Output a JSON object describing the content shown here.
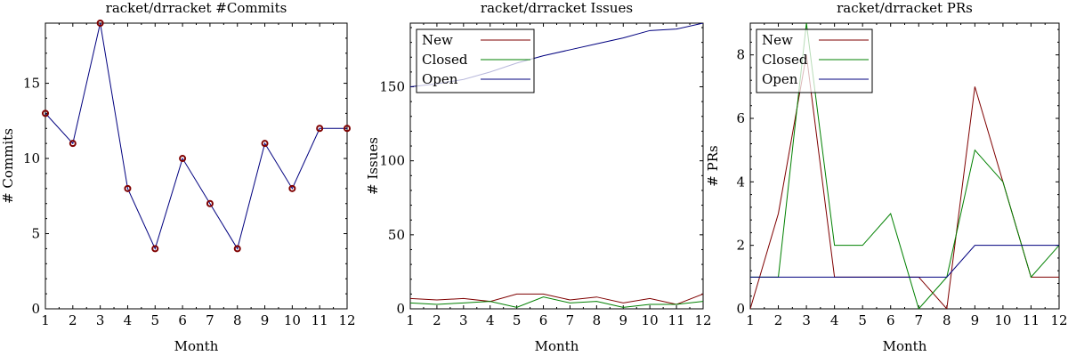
{
  "chart_data": [
    {
      "type": "line",
      "title": "racket/drracket #Commits",
      "xlabel": "Month",
      "ylabel": "# Commits",
      "categories": [
        1,
        2,
        3,
        4,
        5,
        6,
        7,
        8,
        9,
        10,
        11,
        12
      ],
      "xlim": [
        1,
        12
      ],
      "ylim": [
        0,
        19
      ],
      "yticks": [
        0,
        5,
        10,
        15
      ],
      "grid": false,
      "markers": true,
      "series": [
        {
          "values": [
            13,
            11,
            19,
            8,
            4,
            10,
            7,
            4,
            11,
            8,
            12,
            12
          ],
          "color": "#00007f",
          "marker_color": "#7f0000"
        }
      ]
    },
    {
      "type": "line",
      "title": "racket/drracket Issues",
      "xlabel": "Month",
      "ylabel": "# Issues",
      "categories": [
        1,
        2,
        3,
        4,
        5,
        6,
        7,
        8,
        9,
        10,
        11,
        12
      ],
      "xlim": [
        1,
        12
      ],
      "ylim": [
        0,
        193
      ],
      "yticks": [
        0,
        50,
        100,
        150
      ],
      "grid": false,
      "legend": "top-left",
      "series": [
        {
          "name": "New",
          "values": [
            7,
            6,
            7,
            5,
            10,
            10,
            6,
            8,
            4,
            7,
            3,
            10
          ],
          "color": "#7f0000"
        },
        {
          "name": "Closed",
          "values": [
            4,
            3,
            4,
            5,
            1,
            8,
            4,
            5,
            1,
            3,
            3,
            5
          ],
          "color": "#008000"
        },
        {
          "name": "Open",
          "values": [
            150,
            152,
            155,
            160,
            166,
            171,
            175,
            179,
            183,
            188,
            189,
            193
          ],
          "color": "#00007f"
        }
      ]
    },
    {
      "type": "line",
      "title": "racket/drracket PRs",
      "xlabel": "Month",
      "ylabel": "# PRs",
      "categories": [
        1,
        2,
        3,
        4,
        5,
        6,
        7,
        8,
        9,
        10,
        11,
        12
      ],
      "xlim": [
        1,
        12
      ],
      "ylim": [
        0,
        9
      ],
      "yticks": [
        0,
        2,
        4,
        6,
        8
      ],
      "grid": false,
      "legend": "top-left",
      "series": [
        {
          "name": "New",
          "values": [
            0,
            3,
            8,
            1,
            1,
            1,
            1,
            0,
            7,
            4,
            1,
            1
          ],
          "color": "#7f0000"
        },
        {
          "name": "Closed",
          "values": [
            1,
            1,
            9,
            2,
            2,
            3,
            0,
            1,
            5,
            4,
            1,
            2
          ],
          "color": "#008000"
        },
        {
          "name": "Open",
          "values": [
            1,
            1,
            1,
            1,
            1,
            1,
            1,
            1,
            2,
            2,
            2,
            2
          ],
          "color": "#00007f"
        }
      ]
    }
  ]
}
